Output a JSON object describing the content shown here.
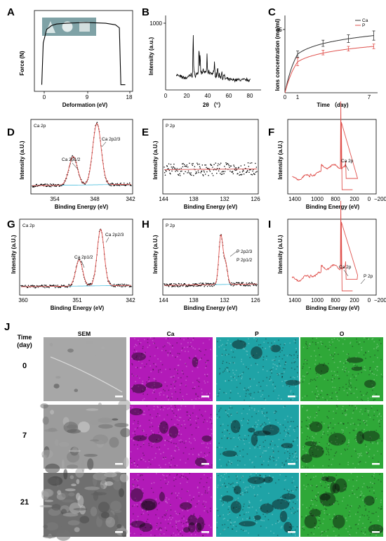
{
  "panels": {
    "A": {
      "label": "A",
      "xlabel": "Deformation (eV)",
      "ylabel": "Force (N)",
      "xticks": [
        "0",
        "9",
        "18"
      ]
    },
    "B": {
      "label": "B",
      "xlabel": "2θ （°）",
      "ylabel": "Intensity (a.u.)",
      "yticks": [
        "1000"
      ],
      "xticks": [
        "0",
        "20",
        "40",
        "60",
        "80"
      ]
    },
    "C": {
      "label": "C",
      "xlabel": "Time （day)",
      "ylabel": "Ions concentration (mg/ml)",
      "yticks": [
        "0",
        "45"
      ],
      "xticks": [
        "1",
        "7"
      ],
      "legend": [
        "Ca",
        "P"
      ]
    },
    "D": {
      "label": "D",
      "title": "Ca 2p",
      "xlabel": "Binding Energy (eV)",
      "ylabel": "Intensity (a.U.)",
      "xticks": [
        "354",
        "348",
        "342"
      ],
      "ann": [
        "Ca 2p1/2",
        "Ca 2p2/3"
      ]
    },
    "E": {
      "label": "E",
      "title": "P 2p",
      "xlabel": "Binding Energy (eV)",
      "ylabel": "Intensity (a.U.)",
      "xticks": [
        "144",
        "138",
        "132",
        "126"
      ]
    },
    "F": {
      "label": "F",
      "xlabel": "Binding Energy (eV)",
      "ylabel": "Intensity (a.U.)",
      "xticks": [
        "1400",
        "1000",
        "800",
        "200",
        "0",
        "−200"
      ],
      "ann": [
        "Ca 2p"
      ]
    },
    "G": {
      "label": "G",
      "title": "Ca 2p",
      "xlabel": "Binding Energy (eV)",
      "ylabel": "Intensity (a.U.)",
      "xticks": [
        "360",
        "351",
        "342"
      ],
      "ann": [
        "Ca 2p1/2",
        "Ca 2p2/3"
      ]
    },
    "H": {
      "label": "H",
      "title": "P 2p",
      "xlabel": "Binding Energy (eV)",
      "ylabel": "Intensity (a.U.)",
      "xticks": [
        "144",
        "138",
        "132",
        "126"
      ],
      "ann": [
        "P 2p2/3",
        "P 2p1/2"
      ]
    },
    "I": {
      "label": "I",
      "xlabel": "Binding Energy (eV)",
      "ylabel": "Intensity (a.U.)",
      "xticks": [
        "1400",
        "1000",
        "800",
        "200",
        "0",
        "−200"
      ],
      "ann": [
        "Ca 2p",
        "P 2p"
      ]
    }
  },
  "grid": {
    "label": "J",
    "header_time": "Time",
    "header_unit": "(day)",
    "columns": [
      "SEM",
      "Ca",
      "P",
      "O"
    ],
    "rows": [
      "0",
      "7",
      "21"
    ],
    "colors": {
      "SEM": "#8a8a8a",
      "Ca": "#b21ab8",
      "P": "#1fa3a6",
      "O": "#2fa838"
    }
  },
  "chart_data": [
    {
      "type": "line",
      "panel": "A",
      "x": [
        0,
        0.3,
        1,
        2,
        3,
        5,
        9,
        13,
        15,
        15.8,
        16.1,
        17
      ],
      "y": [
        0.05,
        0.6,
        0.78,
        0.83,
        0.85,
        0.86,
        0.87,
        0.86,
        0.84,
        0.8,
        0.05,
        0.05
      ],
      "xlim": [
        -1.5,
        18.5
      ]
    },
    {
      "type": "line",
      "panel": "B",
      "x": [
        10,
        20,
        30,
        40,
        50,
        60,
        70,
        80
      ],
      "xlim": [
        0,
        90
      ],
      "ylim": [
        0,
        1100
      ],
      "peaks": [
        [
          26,
          880
        ],
        [
          31.5,
          640
        ],
        [
          32.5,
          560
        ],
        [
          39,
          480
        ],
        [
          46,
          420
        ],
        [
          49,
          370
        ],
        [
          53,
          330
        ]
      ]
    },
    {
      "type": "line",
      "panel": "C",
      "xlim": [
        0,
        7.3
      ],
      "ylim": [
        0,
        50
      ],
      "series": [
        {
          "name": "Ca",
          "color": "#333333",
          "x": [
            1,
            3,
            5,
            7
          ],
          "y": [
            25,
            32,
            35,
            37
          ],
          "err": [
            2.0,
            2.0,
            2.5,
            3.0
          ]
        },
        {
          "name": "P",
          "color": "#e0524e",
          "x": [
            1,
            3,
            5,
            7
          ],
          "y": [
            20,
            26,
            28.5,
            30
          ],
          "err": [
            2.5,
            1.5,
            1.5,
            1.5
          ]
        }
      ]
    },
    {
      "type": "line",
      "panel": "D",
      "xlim": [
        357,
        342
      ],
      "peaks": [
        [
          350.8,
          0.42,
          0.9
        ],
        [
          347.2,
          0.9,
          0.95
        ]
      ]
    },
    {
      "type": "scatter",
      "panel": "E",
      "xlim": [
        144,
        126
      ]
    },
    {
      "type": "line",
      "panel": "F",
      "xlim": [
        1400,
        -200
      ],
      "peaks": [
        [
          440,
          0.95
        ],
        [
          350,
          0.25
        ]
      ]
    },
    {
      "type": "line",
      "panel": "G",
      "xlim": [
        360,
        342
      ],
      "peaks": [
        [
          350.5,
          0.38,
          0.8
        ],
        [
          347.0,
          0.82,
          0.85
        ]
      ]
    },
    {
      "type": "line",
      "panel": "H",
      "xlim": [
        144,
        126
      ],
      "peaks": [
        [
          133.0,
          0.7,
          0.9
        ],
        [
          132.1,
          0.3,
          0.6
        ]
      ]
    },
    {
      "type": "line",
      "panel": "I",
      "xlim": [
        1400,
        -200
      ],
      "peaks": [
        [
          440,
          0.95
        ],
        [
          350,
          0.25
        ],
        [
          133,
          0.06
        ]
      ]
    }
  ]
}
